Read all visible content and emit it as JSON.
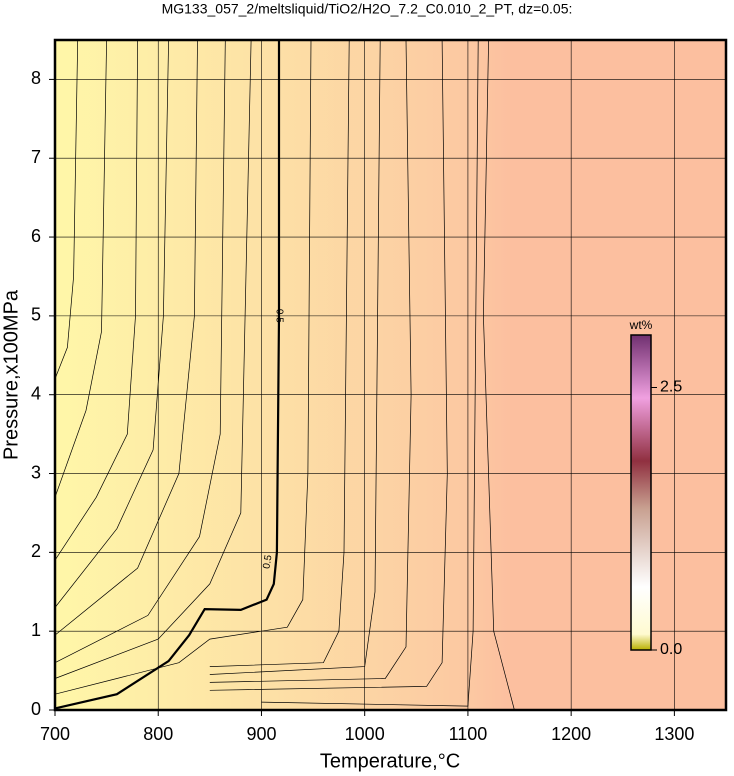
{
  "chart_data": {
    "type": "contour",
    "title": "MG133_057_2/meltsliquid/TiO2/H2O_7.2_C0.010_2_PT, dz=0.05:",
    "x_label": "Temperature,°C",
    "y_label": "Pressure,x100MPa",
    "xlim": [
      700,
      1350
    ],
    "ylim": [
      0,
      8.5
    ],
    "xticks": [
      700,
      800,
      900,
      1000,
      1100,
      1200,
      1300
    ],
    "yticks": [
      0,
      1,
      2,
      3,
      4,
      5,
      6,
      7,
      8
    ],
    "grid": true,
    "contours": [
      {
        "label": "0.5",
        "x": [
          700,
          760,
          810,
          830,
          845,
          880,
          905,
          912,
          915,
          917,
          917
        ],
        "y": [
          0.02,
          0.2,
          0.62,
          0.95,
          1.28,
          1.27,
          1.4,
          1.6,
          2,
          5,
          8.5
        ]
      },
      {
        "x": [
          700,
          712,
          718,
          722
        ],
        "y": [
          4.2,
          4.6,
          5.5,
          8.5
        ]
      },
      {
        "x": [
          700,
          730,
          745,
          750
        ],
        "y": [
          2.7,
          3.8,
          4.8,
          8.5
        ]
      },
      {
        "x": [
          700,
          740,
          770,
          778,
          780
        ],
        "y": [
          1.9,
          2.7,
          3.5,
          5,
          8.5
        ]
      },
      {
        "x": [
          700,
          760,
          795,
          805,
          810
        ],
        "y": [
          1.3,
          2.3,
          3.3,
          5,
          8.5
        ]
      },
      {
        "x": [
          700,
          780,
          820,
          835,
          838
        ],
        "y": [
          0.95,
          1.8,
          3,
          5,
          8.5
        ]
      },
      {
        "x": [
          700,
          790,
          840,
          860,
          865
        ],
        "y": [
          0.6,
          1.2,
          2.2,
          3.5,
          8.5
        ]
      },
      {
        "x": [
          700,
          800,
          850,
          880,
          890
        ],
        "y": [
          0.4,
          0.9,
          1.6,
          2.5,
          8.5
        ]
      },
      {
        "x": [
          700,
          760,
          820,
          850,
          925,
          940,
          945,
          948
        ],
        "y": [
          0.2,
          0.4,
          0.6,
          0.9,
          1.05,
          1.4,
          3,
          8.5
        ]
      },
      {
        "x": [
          850,
          960,
          975,
          980,
          985
        ],
        "y": [
          0.55,
          0.6,
          1,
          2,
          8.5
        ]
      },
      {
        "x": [
          850,
          1000,
          1010,
          1015
        ],
        "y": [
          0.45,
          0.55,
          1.5,
          8.5
        ]
      },
      {
        "x": [
          850,
          1020,
          1040,
          1045,
          1040
        ],
        "y": [
          0.35,
          0.4,
          0.8,
          4,
          8.5
        ]
      },
      {
        "x": [
          850,
          1060,
          1075,
          1080,
          1075
        ],
        "y": [
          0.25,
          0.3,
          0.6,
          3,
          8.5
        ]
      },
      {
        "x": [
          900,
          1100,
          1105,
          1110
        ],
        "y": [
          0.1,
          0.05,
          1,
          8.5
        ]
      },
      {
        "x": [
          1120,
          1115,
          1125,
          1145
        ],
        "y": [
          8.5,
          5,
          1,
          0
        ]
      }
    ],
    "colorbar": {
      "label": "wt%",
      "lim": [
        0,
        3.0
      ],
      "ticks": [
        {
          "value": 0,
          "label": "0.0"
        },
        {
          "value": 2.5,
          "label": "2.5"
        }
      ]
    }
  }
}
